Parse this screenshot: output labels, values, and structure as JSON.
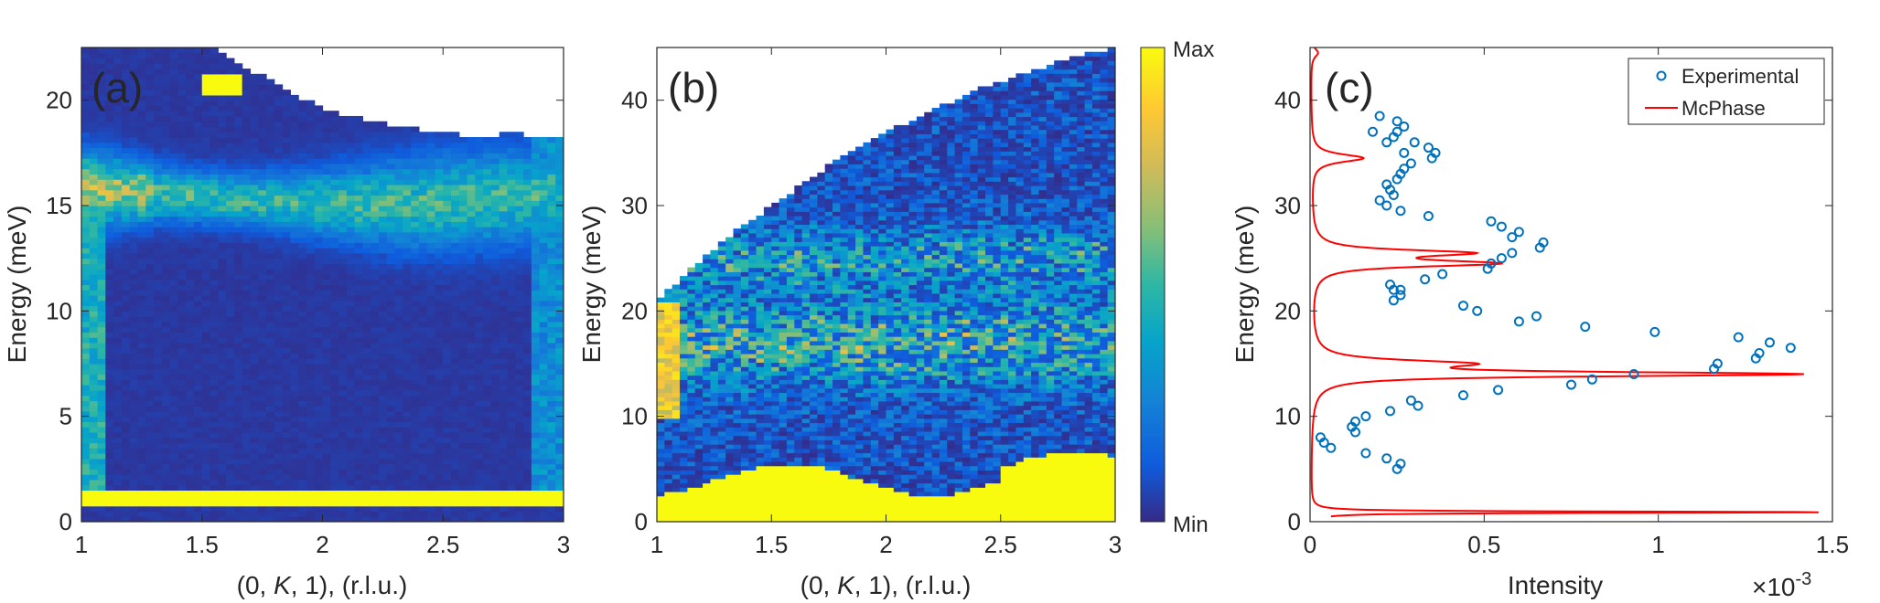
{
  "chart_data": [
    {
      "panel": "a",
      "type": "heatmap",
      "panel_label": "(a)",
      "xlabel_parts": [
        "(0, ",
        "K",
        ", 1), (r.l.u.)"
      ],
      "ylabel": "Energy (meV)",
      "xlim": [
        1,
        3
      ],
      "ylim": [
        0,
        22.5
      ],
      "xticks": [
        1,
        1.5,
        2,
        2.5,
        3
      ],
      "xtick_labels": [
        "1",
        "1.5",
        "2",
        "2.5",
        "3"
      ],
      "yticks": [
        0,
        5,
        10,
        15,
        20
      ],
      "ytick_labels": [
        "0",
        "5",
        "10",
        "15",
        "20"
      ],
      "features": [
        {
          "kind": "bright_band",
          "energy_range": [
            0.8,
            1.5
          ],
          "level": 1.0
        },
        {
          "kind": "dispersion_band",
          "energy_center": 15.5,
          "width": 1.6,
          "peak_level": 0.75
        },
        {
          "kind": "left_edge_column",
          "k": 1.05,
          "level": 0.55
        },
        {
          "kind": "right_edge_column",
          "k": 2.93,
          "level": 0.4
        },
        {
          "kind": "bright_patch",
          "k_range": [
            1.5,
            1.67
          ],
          "energy_range": [
            20.2,
            21.3
          ],
          "level": 1.0
        }
      ],
      "upper_boundary": {
        "k": [
          1.0,
          1.55,
          1.65,
          1.8,
          2.0,
          2.2,
          2.4,
          2.6,
          2.8,
          3.0
        ],
        "energy": [
          22.5,
          22.5,
          21.8,
          20.8,
          19.6,
          19.0,
          18.6,
          18.3,
          18.4,
          18.2
        ]
      }
    },
    {
      "panel": "b",
      "type": "heatmap",
      "panel_label": "(b)",
      "xlabel_parts": [
        "(0, ",
        "K",
        ", 1), (r.l.u.)"
      ],
      "ylabel": "Energy (meV)",
      "xlim": [
        1,
        3
      ],
      "ylim": [
        0,
        45
      ],
      "xticks": [
        1,
        1.5,
        2,
        2.5,
        3
      ],
      "xtick_labels": [
        "1",
        "1.5",
        "2",
        "2.5",
        "3"
      ],
      "yticks": [
        0,
        10,
        20,
        30,
        40
      ],
      "ytick_labels": [
        "0",
        "10",
        "20",
        "30",
        "40"
      ],
      "features": [
        {
          "kind": "bright_band",
          "energy_range": [
            0,
            4
          ],
          "level": 1.0
        },
        {
          "kind": "broad_band",
          "energy_center": 17,
          "width": 4,
          "peak_level": 0.6
        },
        {
          "kind": "faint_band",
          "energy_center": 25,
          "width": 3,
          "peak_level": 0.45
        }
      ],
      "upper_boundary": {
        "k": [
          1.0,
          1.2,
          1.4,
          1.6,
          1.8,
          2.0,
          2.2,
          2.4,
          2.6,
          2.8,
          3.0
        ],
        "energy": [
          21,
          25,
          28.5,
          31.5,
          34.5,
          37,
          39,
          41,
          42.5,
          44,
          45
        ]
      }
    },
    {
      "panel": "c",
      "type": "scatter+line",
      "panel_label": "(c)",
      "xlabel": "Intensity",
      "ylabel": "Energy (meV)",
      "x_multiplier": "×10",
      "x_multiplier_exp": "-3",
      "xlim": [
        0,
        1.5
      ],
      "ylim": [
        0,
        45
      ],
      "xticks": [
        0,
        0.5,
        1,
        1.5
      ],
      "xtick_labels": [
        "0",
        "0.5",
        "1",
        "1.5"
      ],
      "yticks": [
        0,
        10,
        20,
        30,
        40
      ],
      "ytick_labels": [
        "0",
        "10",
        "20",
        "30",
        "40"
      ],
      "legend_position": "top-right",
      "series": [
        {
          "name": "Experimental",
          "kind": "scatter",
          "color": "#0072BD",
          "x": [
            0.03,
            0.04,
            0.06,
            0.12,
            0.13,
            0.13,
            0.16,
            0.22,
            0.25,
            0.26,
            0.23,
            0.29,
            0.31,
            0.44,
            0.54,
            0.75,
            0.81,
            0.93,
            0.16,
            0.24,
            0.26,
            0.26,
            0.23,
            0.24,
            0.44,
            0.48,
            0.6,
            0.65,
            0.79,
            0.99,
            1.16,
            1.17,
            1.23,
            1.28,
            1.29,
            1.32,
            1.38,
            0.33,
            0.38,
            0.51,
            0.52,
            0.55,
            0.58,
            0.6,
            0.66,
            0.67,
            0.58,
            0.52,
            0.55,
            0.2,
            0.22,
            0.24,
            0.26,
            0.23,
            0.22,
            0.25,
            0.34,
            0.26,
            0.27,
            0.29,
            0.35,
            0.36,
            0.34,
            0.22,
            0.24,
            0.25,
            0.27,
            0.3,
            0.18,
            0.2,
            0.25,
            0.27
          ],
          "y": [
            8,
            7.5,
            7,
            9,
            9.5,
            8.5,
            6.5,
            6,
            5,
            5.5,
            10.5,
            11.5,
            11,
            12,
            12.5,
            13,
            13.5,
            14,
            10,
            21,
            21.5,
            22,
            22.5,
            22,
            20.5,
            20,
            19,
            19.5,
            18.5,
            18,
            14.5,
            15,
            17.5,
            15.5,
            16,
            17,
            16.5,
            23,
            23.5,
            24,
            24.5,
            25,
            25.5,
            27.5,
            26,
            26.5,
            27,
            28.5,
            28,
            30.5,
            30,
            31,
            29.5,
            31.5,
            32,
            32.5,
            29,
            33,
            33.5,
            34,
            34.5,
            35,
            35.5,
            36,
            36.5,
            37,
            37.5,
            36,
            37,
            38.5,
            38,
            35
          ]
        },
        {
          "name": "McPhase",
          "kind": "line",
          "color": "#FF0000",
          "baseline": 0.002,
          "peaks": [
            {
              "center": 0.9,
              "amplitude": 1.48,
              "width": 0.08
            },
            {
              "center": 14.0,
              "amplitude": 1.36,
              "width": 0.25
            },
            {
              "center": 15.0,
              "amplitude": 0.4,
              "width": 0.4
            },
            {
              "center": 24.5,
              "amplitude": 0.5,
              "width": 0.35
            },
            {
              "center": 25.5,
              "amplitude": 0.42,
              "width": 0.35
            },
            {
              "center": 34.5,
              "amplitude": 0.15,
              "width": 0.45
            },
            {
              "center": 44.5,
              "amplitude": 0.02,
              "width": 0.5
            }
          ]
        }
      ]
    }
  ],
  "colorbar": {
    "max_label": "Max",
    "min_label": "Min",
    "colormap": "parula"
  }
}
